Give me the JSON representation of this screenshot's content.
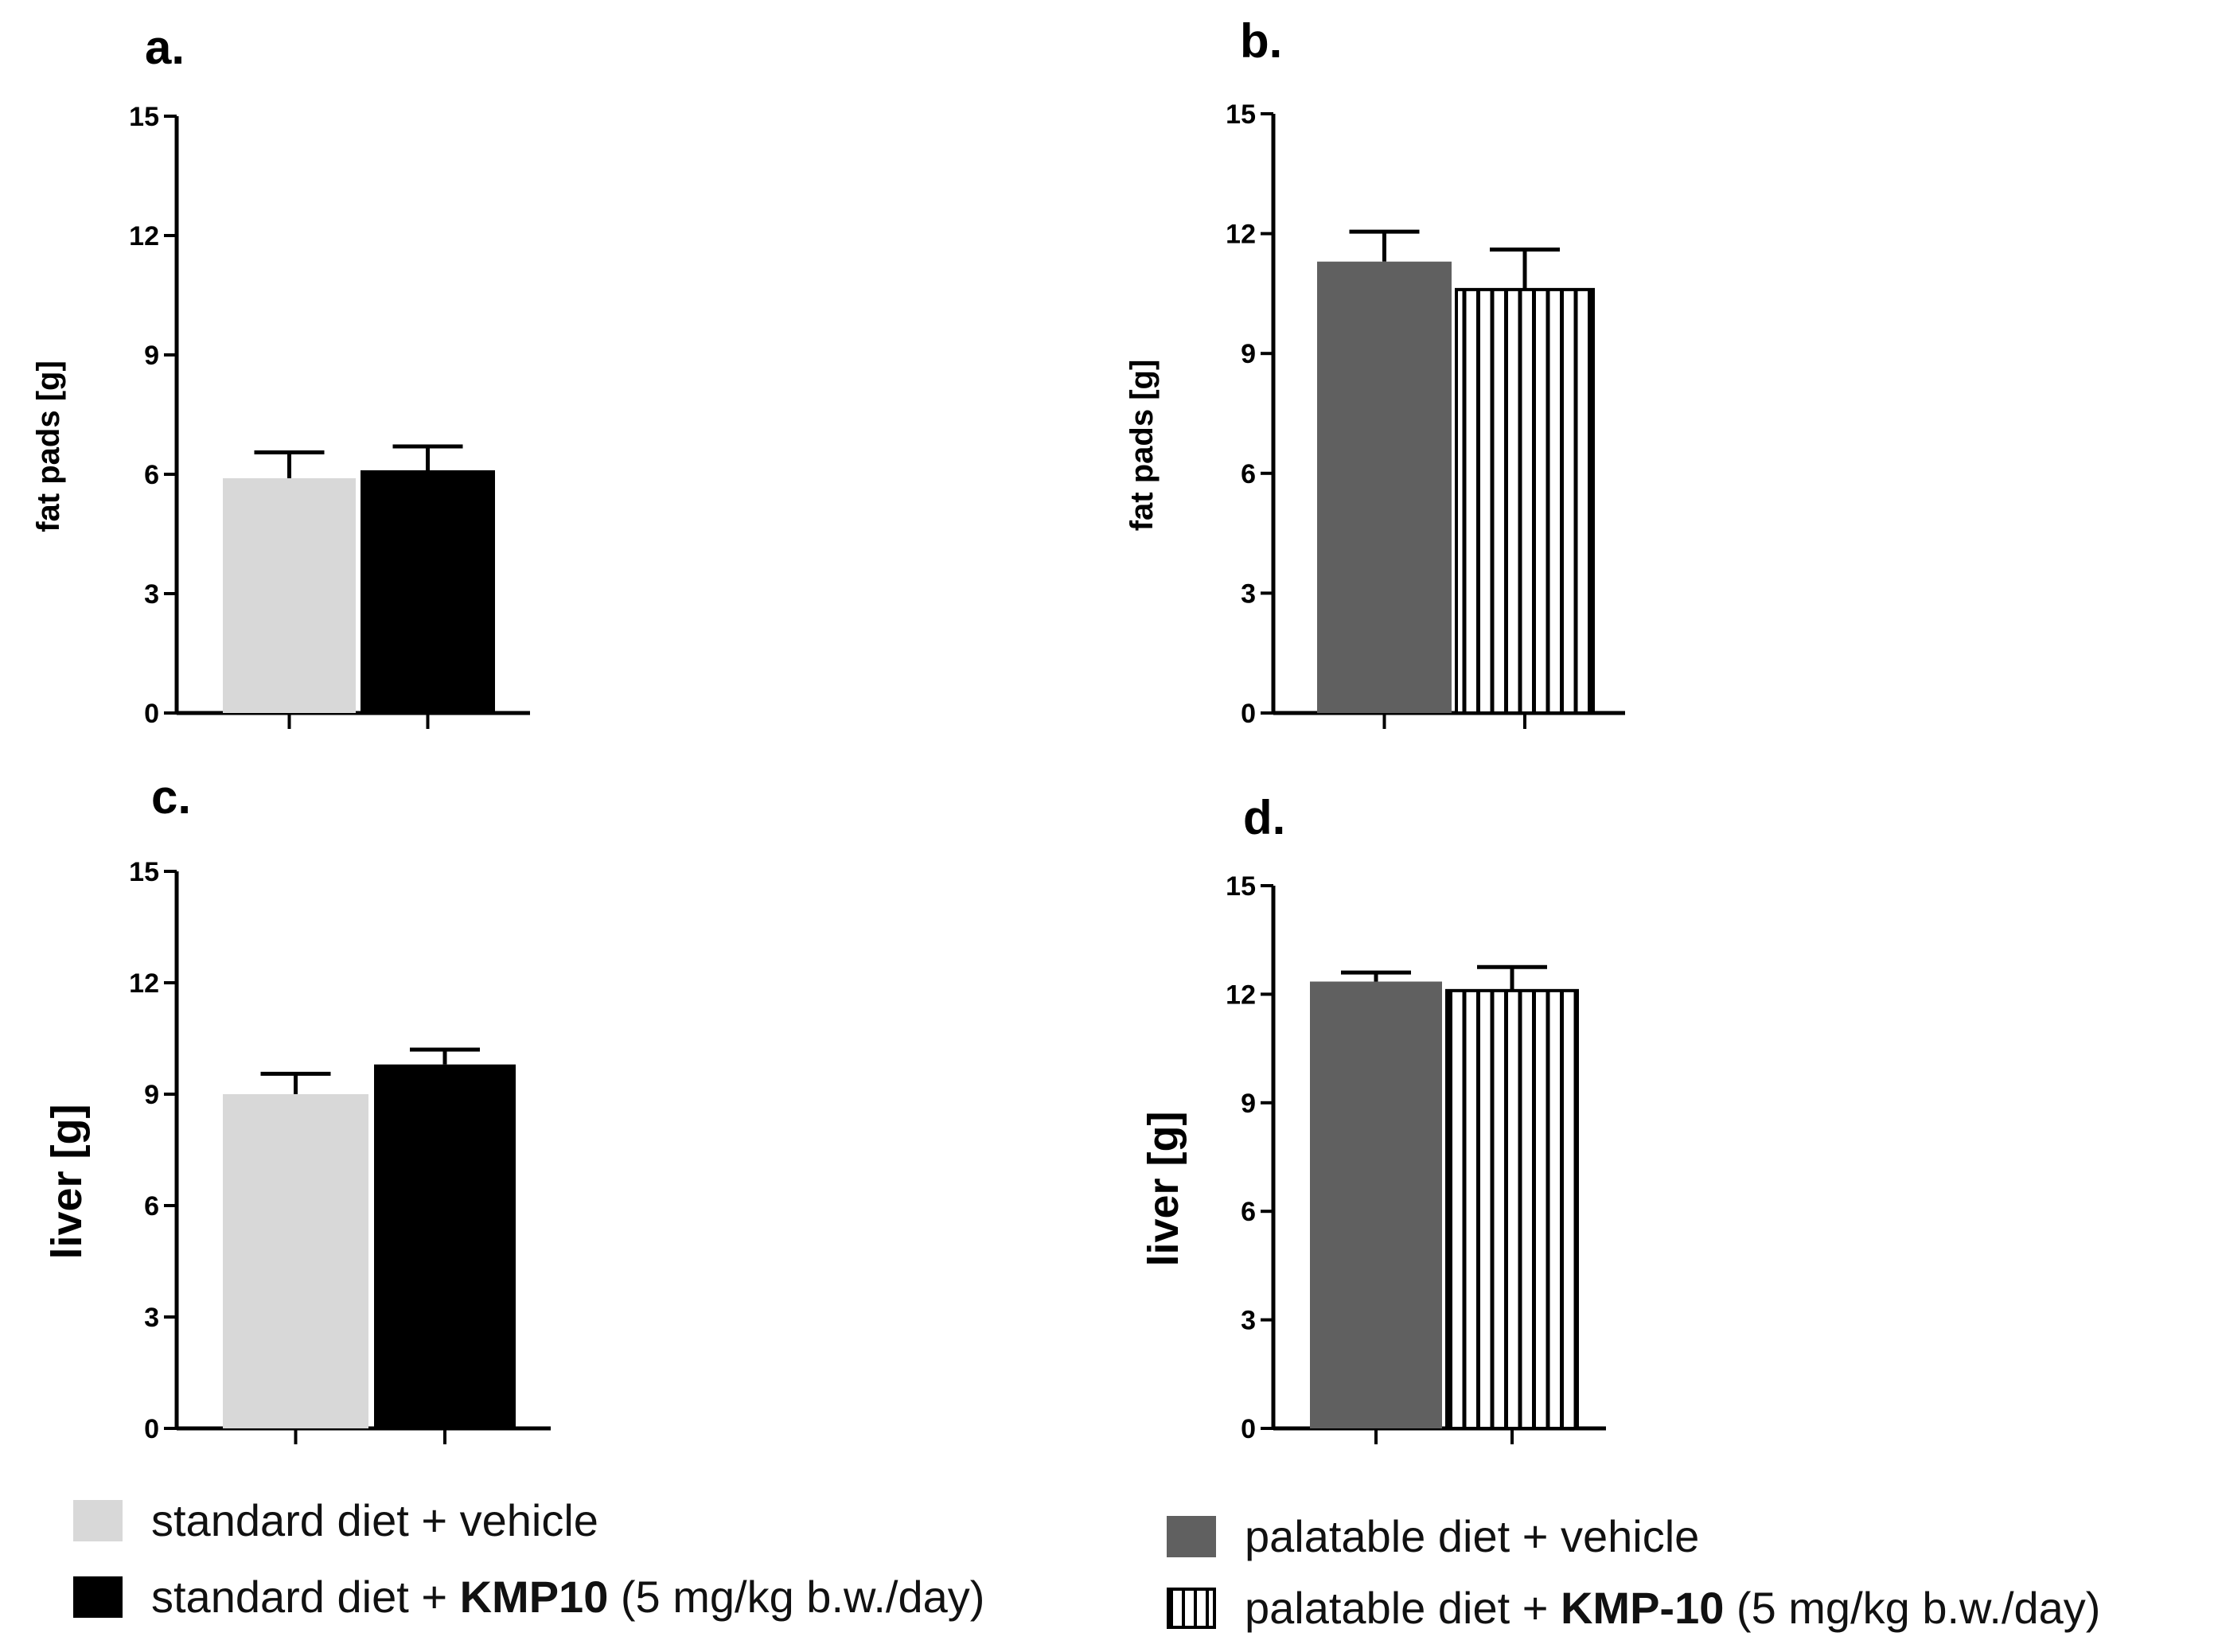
{
  "colors": {
    "standard_vehicle": "#d8d8d8",
    "standard_kmp10": "#000000",
    "palatable_vehicle": "#606060",
    "palatable_kmp10_stripe": "#000000"
  },
  "chart_data": [
    {
      "panel": "a.",
      "type": "bar",
      "title": "",
      "xlabel": "",
      "ylabel": "fat pads [g]",
      "ylim": [
        0,
        15
      ],
      "yticks": [
        "0",
        "3",
        "6",
        "9",
        "12",
        "15"
      ],
      "categories": [
        "standard diet + vehicle",
        "standard diet + KMP10 (5 mg/kg b.w./day)"
      ],
      "values": [
        5.9,
        6.1
      ],
      "errors": [
        0.65,
        0.6
      ],
      "fills": [
        "standard_vehicle",
        "standard_kmp10"
      ]
    },
    {
      "panel": "b.",
      "type": "bar",
      "title": "",
      "xlabel": "",
      "ylabel": "fat pads [g]",
      "ylim": [
        0,
        15
      ],
      "yticks": [
        "0",
        "3",
        "6",
        "9",
        "12",
        "15"
      ],
      "categories": [
        "palatable diet + vehicle",
        "palatable diet + KMP-10 (5 mg/kg b.w./day)"
      ],
      "values": [
        11.3,
        10.6
      ],
      "errors": [
        0.75,
        1.0
      ],
      "fills": [
        "palatable_vehicle",
        "palatable_kmp10"
      ]
    },
    {
      "panel": "c.",
      "type": "bar",
      "title": "",
      "xlabel": "",
      "ylabel": "liver [g]",
      "ylim": [
        0,
        15
      ],
      "yticks": [
        "0",
        "3",
        "6",
        "9",
        "12",
        "15"
      ],
      "categories": [
        "standard diet + vehicle",
        "standard diet + KMP10 (5 mg/kg b.w./day)"
      ],
      "values": [
        9.0,
        9.8
      ],
      "errors": [
        0.55,
        0.4
      ],
      "fills": [
        "standard_vehicle",
        "standard_kmp10"
      ]
    },
    {
      "panel": "d.",
      "type": "bar",
      "title": "",
      "xlabel": "",
      "ylabel": "liver [g]",
      "ylim": [
        0,
        15
      ],
      "yticks": [
        "0",
        "3",
        "6",
        "9",
        "12",
        "15"
      ],
      "categories": [
        "palatable diet + vehicle",
        "palatable diet + KMP-10 (5 mg/kg b.w./day)"
      ],
      "values": [
        12.35,
        12.1
      ],
      "errors": [
        0.25,
        0.65
      ],
      "fills": [
        "palatable_vehicle",
        "palatable_kmp10"
      ]
    }
  ],
  "legend": {
    "left": [
      {
        "prefix": "standard diet + vehicle",
        "bold": "",
        "suffix": ""
      },
      {
        "prefix": "standard diet + ",
        "bold": "KMP10",
        "suffix": " (5 mg/kg b.w./day)"
      }
    ],
    "right": [
      {
        "prefix": "palatable diet + vehicle",
        "bold": "",
        "suffix": ""
      },
      {
        "prefix": "palatable diet + ",
        "bold": "KMP-10",
        "suffix": " (5 mg/kg b.w./day)"
      }
    ]
  }
}
